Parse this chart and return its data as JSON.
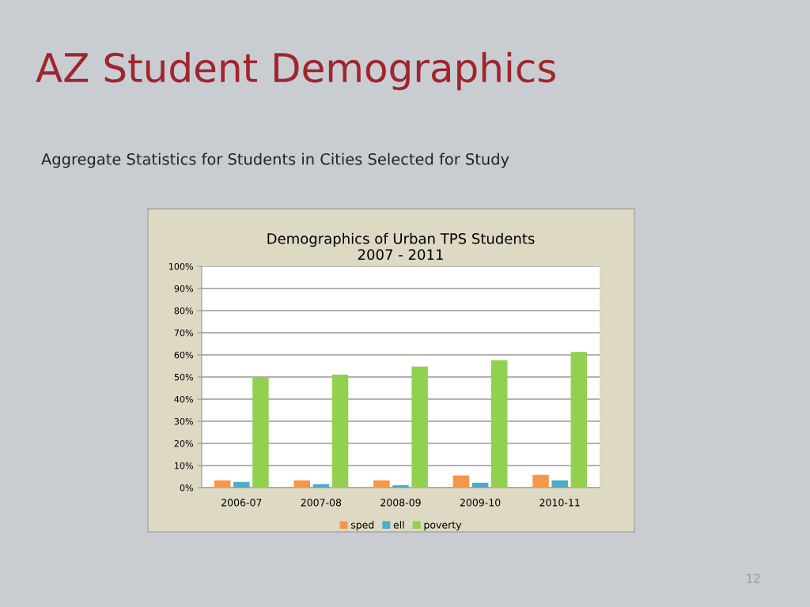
{
  "chart_data": {
    "type": "bar",
    "title": "Demographics of Urban TPS Students\n2007 - 2011",
    "annotations": [
      "AZ Student Demographics",
      "Aggregate Statistics for Students in Cities Selected for Study",
      "12"
    ],
    "categories": [
      "2006-07",
      "2007-08",
      "2008-09",
      "2009-10",
      "2010-11"
    ],
    "series": [
      {
        "name": "sped",
        "color": "#f79646",
        "values": [
          3.3,
          3.3,
          3.3,
          5.5,
          5.8
        ]
      },
      {
        "name": "ell",
        "color": "#4bacc6",
        "values": [
          2.6,
          1.6,
          1.1,
          2.2,
          3.3
        ]
      },
      {
        "name": "poverty",
        "color": "#92d050",
        "values": [
          50,
          51.1,
          54.7,
          57.6,
          61.3
        ]
      }
    ],
    "ylim": [
      0,
      100
    ],
    "yticks": [
      {
        "value": 0,
        "label": "0%"
      },
      {
        "value": 10,
        "label": "10%"
      },
      {
        "value": 20,
        "label": "20%"
      },
      {
        "value": 30,
        "label": "30%"
      },
      {
        "value": 40,
        "label": "40%"
      },
      {
        "value": 50,
        "label": "50%"
      },
      {
        "value": 60,
        "label": "60%"
      },
      {
        "value": 70,
        "label": "70%"
      },
      {
        "value": 80,
        "label": "80%"
      },
      {
        "value": 90,
        "label": "90%"
      },
      {
        "value": 100,
        "label": "100%"
      }
    ],
    "grid": "y",
    "legend": "bottom"
  }
}
